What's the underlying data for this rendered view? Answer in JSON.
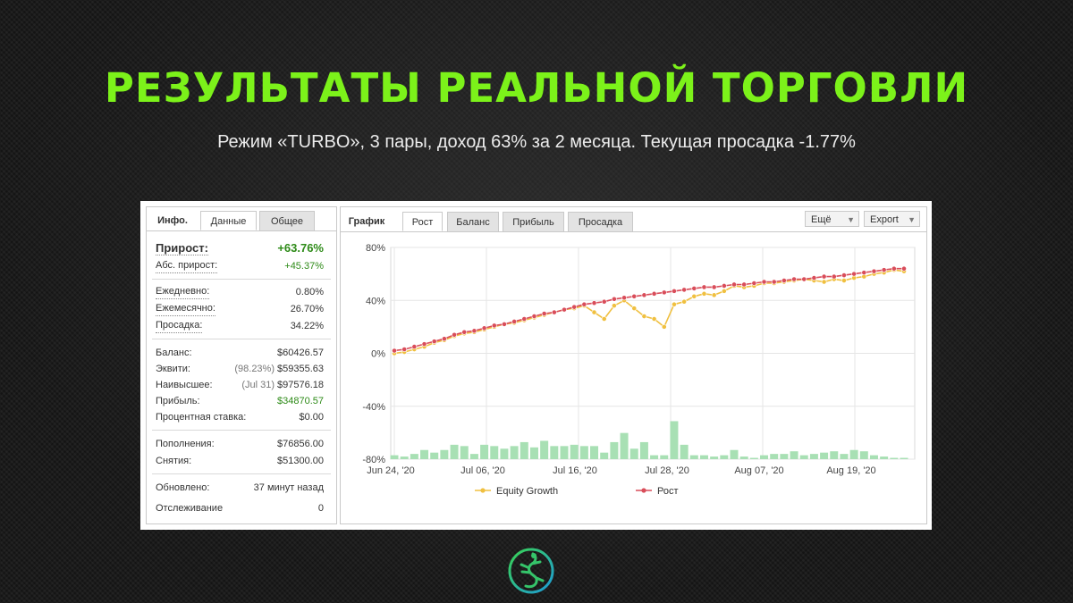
{
  "slide": {
    "title": "РЕЗУЛЬТАТЫ РЕАЛЬНОЙ ТОРГОВЛИ",
    "subtitle": "Режим «TURBO», 3 пары, доход 63% за 2 месяца. Текущая просадка -1.77%",
    "title_color": "#7cf21a"
  },
  "info_panel": {
    "tabs": [
      "Инфо.",
      "Данные",
      "Общее"
    ],
    "active_tab": "Данные",
    "gain": {
      "label": "Прирост:",
      "value": "+63.76%"
    },
    "abs_gain": {
      "label": "Абс. прирост:",
      "value": "+45.37%"
    },
    "daily": {
      "label": "Ежедневно:",
      "value": "0.80%"
    },
    "monthly": {
      "label": "Ежемесячно:",
      "value": "26.70%"
    },
    "drawdown": {
      "label": "Просадка:",
      "value": "34.22%"
    },
    "balance": {
      "label": "Баланс:",
      "value": "$60426.57"
    },
    "equity": {
      "label": "Эквити:",
      "note": "(98.23%)",
      "value": "$59355.63"
    },
    "highest": {
      "label": "Наивысшее:",
      "note": "(Jul 31)",
      "value": "$97576.18"
    },
    "profit": {
      "label": "Прибыль:",
      "value": "$34870.57"
    },
    "interest": {
      "label": "Процентная ставка:",
      "value": "$0.00"
    },
    "deposits": {
      "label": "Пополнения:",
      "value": "$76856.00"
    },
    "withdrawals": {
      "label": "Снятия:",
      "value": "$51300.00"
    },
    "updated": {
      "label": "Обновлено:",
      "value": "37 минут назад"
    },
    "tracking": {
      "label": "Отслеживание",
      "value": "0"
    },
    "positive_color": "#2e8b18"
  },
  "chart_panel": {
    "tabs": [
      "График",
      "Рост",
      "Баланс",
      "Прибыль",
      "Просадка"
    ],
    "active_tab": "Рост",
    "more_label": "Ещё",
    "export_label": "Export"
  },
  "chart_data": {
    "type": "line",
    "x_ticks": [
      "Jun 24, '20",
      "Jul 06, '20",
      "Jul 16, '20",
      "Jul 28, '20",
      "Aug 07, '20",
      "Aug 19, '20"
    ],
    "y_ticks": [
      "80%",
      "40%",
      "0%",
      "-40%",
      "-80%"
    ],
    "ylim": [
      -80,
      80
    ],
    "grid": true,
    "legend_position": "bottom",
    "series": [
      {
        "name": "Equity Growth",
        "color": "#f0c040",
        "values": [
          0,
          1,
          3,
          5,
          8,
          10,
          13,
          15,
          16,
          18,
          20,
          22,
          23,
          25,
          27,
          29,
          31,
          33,
          34,
          36,
          31,
          26,
          36,
          40,
          34,
          28,
          26,
          20,
          37,
          39,
          43,
          45,
          44,
          47,
          51,
          50,
          51,
          53,
          53,
          54,
          55,
          56,
          55,
          54,
          56,
          55,
          57,
          58,
          60,
          61,
          63,
          62
        ]
      },
      {
        "name": "Рост",
        "color": "#d94d5a",
        "values": [
          2,
          3,
          5,
          7,
          9,
          11,
          14,
          16,
          17,
          19,
          21,
          22,
          24,
          26,
          28,
          30,
          31,
          33,
          35,
          37,
          38,
          39,
          41,
          42,
          43,
          44,
          45,
          46,
          47,
          48,
          49,
          50,
          50,
          51,
          52,
          52,
          53,
          54,
          54,
          55,
          56,
          56,
          57,
          58,
          58,
          59,
          60,
          61,
          62,
          63,
          64,
          64
        ]
      }
    ],
    "volume_bars": [
      3,
      2,
      4,
      7,
      5,
      7,
      11,
      10,
      4,
      11,
      10,
      8,
      10,
      13,
      9,
      14,
      10,
      10,
      11,
      10,
      10,
      5,
      13,
      20,
      8,
      13,
      3,
      3,
      29,
      11,
      3,
      3,
      2,
      3,
      7,
      2,
      1,
      3,
      4,
      4,
      6,
      3,
      4,
      5,
      6,
      4,
      7,
      6,
      3,
      2,
      1,
      1
    ],
    "volume_color": "#a8e0b4"
  }
}
